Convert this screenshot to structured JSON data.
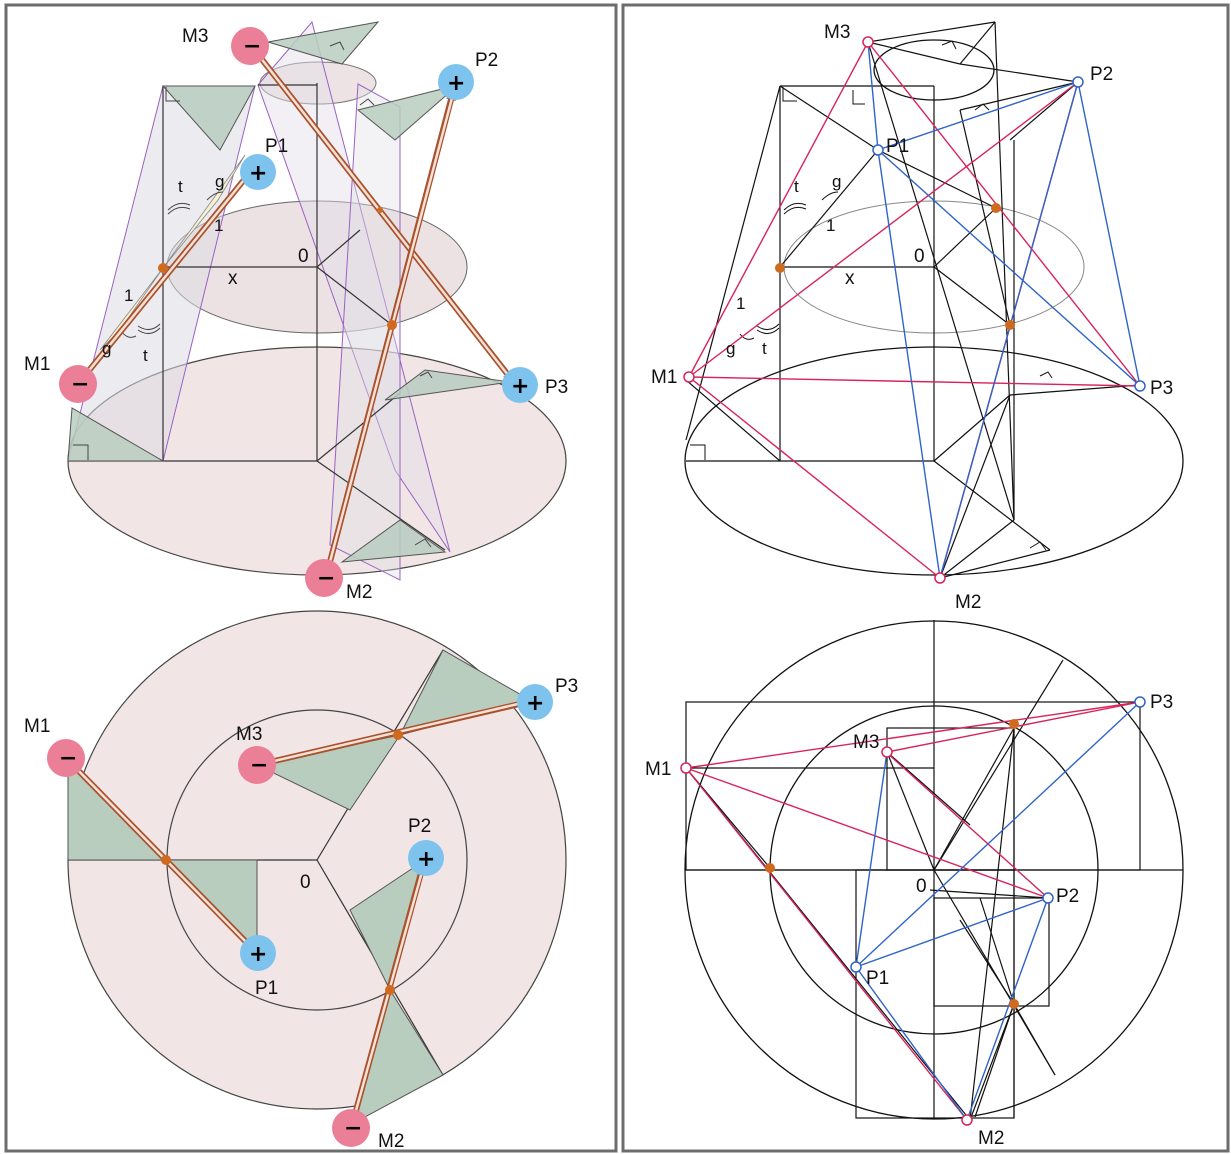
{
  "panel_left": {
    "labels": {
      "m1": "M1",
      "m2": "M2",
      "m3": "M3",
      "p1": "P1",
      "p2": "P2",
      "p3": "P3",
      "origin": "0",
      "x": "x",
      "t1": "t",
      "g1": "g",
      "one1": "1",
      "t2": "t",
      "g2": "g",
      "one2": "1",
      "plan_m1": "M1",
      "plan_m2": "M2",
      "plan_m3": "M3",
      "plan_p1": "P1",
      "plan_p2": "P2",
      "plan_p3": "P3",
      "plan_origin": "0"
    },
    "signs": {
      "minus": "−",
      "plus": "+"
    }
  },
  "panel_right": {
    "labels": {
      "m1": "M1",
      "m2": "M2",
      "m3": "M3",
      "p1": "P1",
      "p2": "P2",
      "p3": "P3",
      "origin": "0",
      "x": "x",
      "t1": "t",
      "g1": "g",
      "one1": "1",
      "t2": "t",
      "g2": "g",
      "one2": "1",
      "plan_m1": "M1",
      "plan_m2": "M2",
      "plan_m3": "M3",
      "plan_p1": "P1",
      "plan_p2": "P2",
      "plan_p3": "P3",
      "plan_origin": "0"
    }
  },
  "colors": {
    "minus_fill": "#ec7f98",
    "plus_fill": "#7ec3ee",
    "disk_fill": "#f1e5e6",
    "triangle_fill": "#b9cdbf",
    "arrow_stroke": "#a9522e",
    "dot": "#cf6a1f",
    "red_line": "#d8245a",
    "blue_line": "#2f64c8",
    "purple_line": "#9a62c2"
  }
}
